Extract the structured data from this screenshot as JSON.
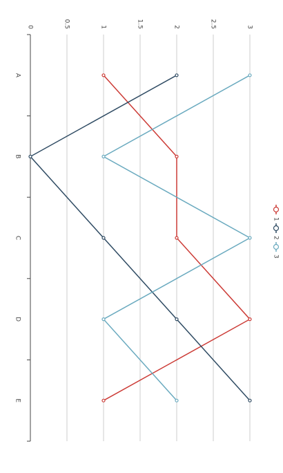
{
  "chart_data": {
    "type": "line",
    "categories": [
      "A",
      "B",
      "C",
      "D",
      "E"
    ],
    "series": [
      {
        "name": "1",
        "color": "#cc3b36",
        "values": [
          1,
          2,
          2,
          3,
          1
        ]
      },
      {
        "name": "2",
        "color": "#2f4b63",
        "values": [
          2,
          0,
          1,
          2,
          3
        ]
      },
      {
        "name": "3",
        "color": "#6aaabf",
        "values": [
          3,
          1,
          3,
          1,
          2
        ]
      }
    ],
    "ylim": [
      0,
      3
    ],
    "yticks": [
      0,
      0.5,
      1,
      1.5,
      2,
      2.5,
      3
    ],
    "grid": true,
    "legend": "top"
  }
}
